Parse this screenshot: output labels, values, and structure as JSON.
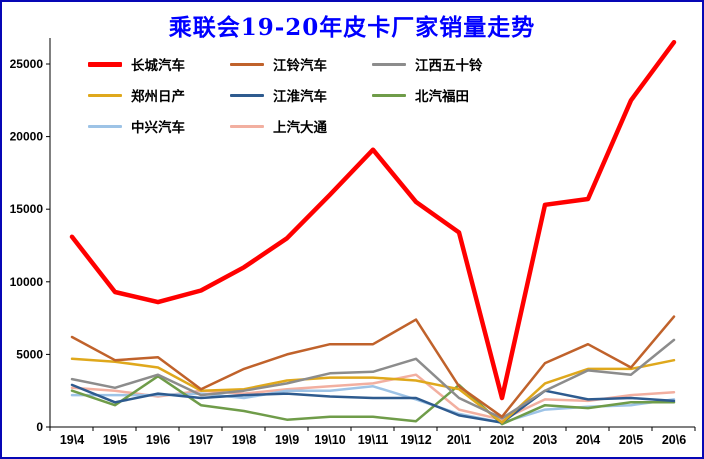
{
  "frame": {
    "border_color": "#0707B5"
  },
  "chart_data": {
    "type": "line",
    "title": "乘联会19-20年皮卡厂家销量走势",
    "title_color": "#0000FF",
    "xlabel": "",
    "ylabel": "",
    "ylim": [
      0,
      27000
    ],
    "yticks": [
      0,
      5000,
      10000,
      15000,
      20000,
      25000
    ],
    "grid": false,
    "legend_position": "top-left-inside",
    "categories": [
      "19\\4",
      "19\\5",
      "19\\6",
      "19\\7",
      "19\\8",
      "19\\9",
      "19\\10",
      "19\\11",
      "19\\12",
      "20\\1",
      "20\\2",
      "20\\3",
      "20\\4",
      "20\\5",
      "20\\6"
    ],
    "series": [
      {
        "key": "changcheng",
        "name": "长城汽车",
        "color": "#FF0000",
        "width": 4.5,
        "values": [
          13100,
          9300,
          8600,
          9400,
          11000,
          13000,
          16000,
          19100,
          15500,
          13400,
          2000,
          15300,
          15700,
          22500,
          26500
        ]
      },
      {
        "key": "jiangling",
        "name": "江铃汽车",
        "color": "#C0622B",
        "width": 2.5,
        "values": [
          6200,
          4600,
          4800,
          2600,
          4000,
          5000,
          5700,
          5700,
          7400,
          2800,
          700,
          4400,
          5700,
          4100,
          7600
        ]
      },
      {
        "key": "jiangxi-wushiling",
        "name": "江西五十铃",
        "color": "#8C8C8C",
        "width": 2.5,
        "values": [
          3300,
          2700,
          3600,
          2200,
          2500,
          3000,
          3700,
          3800,
          4700,
          2000,
          600,
          2500,
          3900,
          3600,
          6000
        ]
      },
      {
        "key": "zhengzhou-richan",
        "name": "郑州日产",
        "color": "#DFA81C",
        "width": 2.5,
        "values": [
          4700,
          4500,
          4100,
          2500,
          2600,
          3200,
          3400,
          3400,
          3200,
          2600,
          300,
          3000,
          4000,
          4000,
          4600
        ]
      },
      {
        "key": "jianghuai",
        "name": "江淮汽车",
        "color": "#2E5B8F",
        "width": 2.5,
        "values": [
          2900,
          1700,
          2300,
          2000,
          2200,
          2300,
          2100,
          2000,
          2000,
          800,
          300,
          2500,
          1900,
          2000,
          1800
        ]
      },
      {
        "key": "beiqi-futian",
        "name": "北汽福田",
        "color": "#6F9C49",
        "width": 2.5,
        "values": [
          2500,
          1500,
          3500,
          1500,
          1100,
          500,
          700,
          700,
          400,
          2900,
          200,
          1500,
          1300,
          1700,
          1700
        ]
      },
      {
        "key": "zhongxing",
        "name": "中兴汽车",
        "color": "#9DC3E6",
        "width": 2.5,
        "values": [
          2200,
          2200,
          2200,
          2300,
          2000,
          2500,
          2500,
          2800,
          1900,
          900,
          300,
          1200,
          1400,
          1500,
          1900
        ]
      },
      {
        "key": "shangqi-datong",
        "name": "上汽大通",
        "color": "#F2AFA0",
        "width": 2.5,
        "values": [
          2700,
          2500,
          2100,
          2500,
          2300,
          2600,
          2800,
          3000,
          3600,
          1200,
          500,
          1900,
          1800,
          2200,
          2400
        ]
      }
    ]
  }
}
